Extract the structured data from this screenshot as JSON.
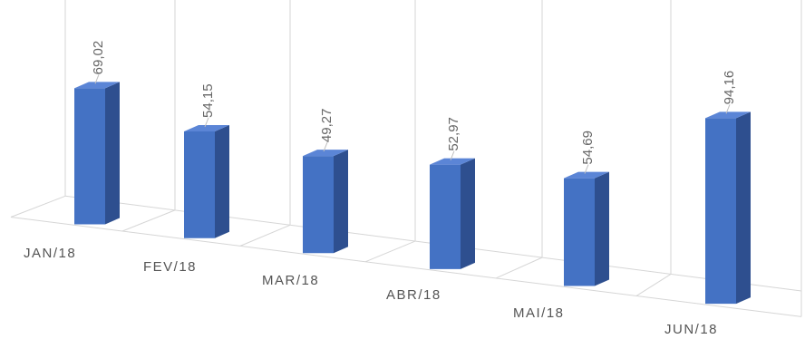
{
  "chart_data": {
    "type": "bar",
    "style": "3d-column",
    "categories": [
      "JAN/18",
      "FEV/18",
      "MAR/18",
      "ABR/18",
      "MAI/18",
      "JUN/18"
    ],
    "values": [
      69.02,
      54.15,
      49.27,
      52.97,
      54.69,
      94.16
    ],
    "value_labels": [
      "69,02",
      "54,15",
      "49,27",
      "52,97",
      "54,69",
      "94,16"
    ],
    "title": "",
    "xlabel": "",
    "ylabel": "",
    "grid": true,
    "legend": "none",
    "colors": {
      "front": "#4472c4",
      "side": "#2e4f8f",
      "top": "#5b85d6",
      "grid": "#d6d6d6"
    }
  }
}
